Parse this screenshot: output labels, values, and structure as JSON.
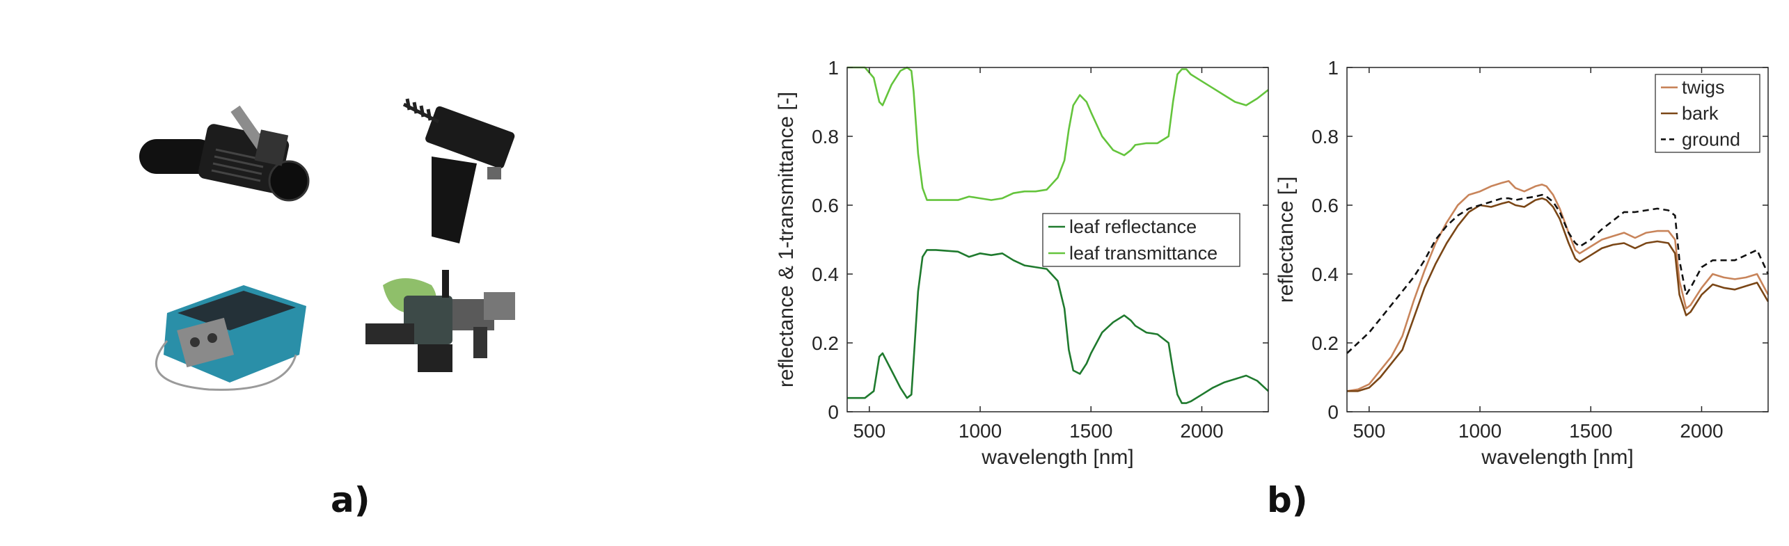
{
  "panels": {
    "a_label": "a)",
    "b_label": "b)"
  },
  "photos": [
    {
      "icon": "handheld-probe-icon"
    },
    {
      "icon": "leaf-clip-pistol-grip-icon"
    },
    {
      "icon": "portable-spectroradiometer-icon"
    },
    {
      "icon": "leaf-clip-integrating-sphere-icon"
    }
  ],
  "chart_data": [
    {
      "type": "line",
      "title": "",
      "xlabel": "wavelength [nm]",
      "ylabel": "reflectance & 1-transmittance [-]",
      "xlim": [
        400,
        2300
      ],
      "ylim": [
        0,
        1
      ],
      "xticks": [
        500,
        1000,
        1500,
        2000
      ],
      "yticks": [
        0,
        0.2,
        0.4,
        0.6,
        0.8,
        1
      ],
      "ytick_labels": [
        "0",
        "0.2",
        "0.4",
        "0.6",
        "0.8",
        "1"
      ],
      "legend_position": "center-right",
      "series": [
        {
          "name": "leaf reflectance",
          "color": "#1f7a2e",
          "dash": "solid",
          "x": [
            400,
            480,
            520,
            545,
            560,
            600,
            640,
            670,
            690,
            700,
            720,
            740,
            760,
            800,
            900,
            950,
            1000,
            1050,
            1100,
            1150,
            1200,
            1250,
            1300,
            1350,
            1380,
            1400,
            1420,
            1450,
            1480,
            1500,
            1550,
            1600,
            1650,
            1680,
            1700,
            1750,
            1800,
            1850,
            1870,
            1890,
            1910,
            1930,
            1950,
            2000,
            2050,
            2100,
            2150,
            2200,
            2250,
            2300
          ],
          "y": [
            0.04,
            0.04,
            0.06,
            0.16,
            0.17,
            0.12,
            0.07,
            0.04,
            0.05,
            0.15,
            0.35,
            0.45,
            0.47,
            0.47,
            0.465,
            0.45,
            0.46,
            0.455,
            0.46,
            0.44,
            0.425,
            0.42,
            0.415,
            0.38,
            0.3,
            0.18,
            0.12,
            0.11,
            0.14,
            0.17,
            0.23,
            0.26,
            0.28,
            0.265,
            0.25,
            0.23,
            0.225,
            0.2,
            0.12,
            0.05,
            0.025,
            0.025,
            0.03,
            0.05,
            0.07,
            0.085,
            0.095,
            0.105,
            0.09,
            0.06
          ]
        },
        {
          "name": "leaf transmittance",
          "color": "#64c43c",
          "dash": "solid",
          "x": [
            400,
            480,
            520,
            545,
            560,
            600,
            640,
            670,
            690,
            700,
            720,
            740,
            760,
            800,
            900,
            950,
            1000,
            1050,
            1100,
            1150,
            1200,
            1250,
            1300,
            1350,
            1380,
            1400,
            1420,
            1450,
            1480,
            1500,
            1550,
            1600,
            1650,
            1680,
            1700,
            1750,
            1800,
            1850,
            1870,
            1890,
            1910,
            1930,
            1950,
            2000,
            2050,
            2100,
            2150,
            2200,
            2250,
            2300
          ],
          "y": [
            1.0,
            1.0,
            0.97,
            0.9,
            0.89,
            0.95,
            0.99,
            1.0,
            0.99,
            0.93,
            0.75,
            0.65,
            0.615,
            0.615,
            0.615,
            0.625,
            0.62,
            0.615,
            0.62,
            0.635,
            0.64,
            0.64,
            0.645,
            0.68,
            0.73,
            0.82,
            0.89,
            0.92,
            0.9,
            0.87,
            0.8,
            0.76,
            0.745,
            0.76,
            0.775,
            0.78,
            0.78,
            0.8,
            0.9,
            0.98,
            0.995,
            0.995,
            0.98,
            0.96,
            0.94,
            0.92,
            0.9,
            0.89,
            0.91,
            0.935
          ]
        }
      ]
    },
    {
      "type": "line",
      "title": "",
      "xlabel": "wavelength [nm]",
      "ylabel": "reflectance [-]",
      "xlim": [
        400,
        2300
      ],
      "ylim": [
        0,
        1
      ],
      "xticks": [
        500,
        1000,
        1500,
        2000
      ],
      "yticks": [
        0,
        0.2,
        0.4,
        0.6,
        0.8,
        1
      ],
      "ytick_labels": [
        "0",
        "0.2",
        "0.4",
        "0.6",
        "0.8",
        "1"
      ],
      "legend_position": "top-right",
      "series": [
        {
          "name": "twigs",
          "color": "#c8845a",
          "dash": "solid",
          "x": [
            400,
            450,
            500,
            550,
            600,
            650,
            700,
            750,
            800,
            850,
            900,
            950,
            1000,
            1050,
            1100,
            1130,
            1160,
            1200,
            1250,
            1280,
            1300,
            1330,
            1360,
            1400,
            1430,
            1450,
            1500,
            1550,
            1600,
            1650,
            1700,
            1750,
            1800,
            1850,
            1880,
            1900,
            1930,
            1950,
            2000,
            2050,
            2100,
            2150,
            2200,
            2250,
            2300
          ],
          "y": [
            0.06,
            0.065,
            0.08,
            0.12,
            0.16,
            0.22,
            0.32,
            0.41,
            0.49,
            0.55,
            0.6,
            0.63,
            0.64,
            0.655,
            0.665,
            0.67,
            0.65,
            0.64,
            0.655,
            0.66,
            0.655,
            0.63,
            0.59,
            0.52,
            0.47,
            0.46,
            0.48,
            0.5,
            0.51,
            0.52,
            0.505,
            0.52,
            0.525,
            0.525,
            0.5,
            0.38,
            0.3,
            0.31,
            0.36,
            0.4,
            0.39,
            0.385,
            0.39,
            0.4,
            0.34
          ]
        },
        {
          "name": "bark",
          "color": "#7a4616",
          "dash": "solid",
          "x": [
            400,
            450,
            500,
            550,
            600,
            650,
            700,
            750,
            800,
            850,
            900,
            950,
            1000,
            1050,
            1100,
            1130,
            1160,
            1200,
            1250,
            1280,
            1300,
            1330,
            1360,
            1400,
            1430,
            1450,
            1500,
            1550,
            1600,
            1650,
            1700,
            1750,
            1800,
            1850,
            1880,
            1900,
            1930,
            1950,
            2000,
            2050,
            2100,
            2150,
            2200,
            2250,
            2300
          ],
          "y": [
            0.06,
            0.06,
            0.07,
            0.1,
            0.14,
            0.18,
            0.27,
            0.36,
            0.43,
            0.49,
            0.54,
            0.58,
            0.6,
            0.595,
            0.605,
            0.61,
            0.6,
            0.595,
            0.615,
            0.62,
            0.615,
            0.595,
            0.56,
            0.49,
            0.445,
            0.435,
            0.455,
            0.475,
            0.485,
            0.49,
            0.475,
            0.49,
            0.495,
            0.49,
            0.46,
            0.34,
            0.28,
            0.29,
            0.34,
            0.37,
            0.36,
            0.355,
            0.365,
            0.375,
            0.32
          ]
        },
        {
          "name": "ground",
          "color": "#111111",
          "dash": "dashed",
          "x": [
            400,
            450,
            500,
            550,
            600,
            650,
            700,
            750,
            800,
            850,
            900,
            950,
            1000,
            1050,
            1100,
            1130,
            1160,
            1200,
            1250,
            1280,
            1300,
            1330,
            1360,
            1400,
            1430,
            1450,
            1500,
            1550,
            1600,
            1650,
            1700,
            1750,
            1800,
            1850,
            1880,
            1900,
            1930,
            1950,
            2000,
            2050,
            2100,
            2150,
            2200,
            2250,
            2300
          ],
          "y": [
            0.17,
            0.2,
            0.23,
            0.27,
            0.31,
            0.35,
            0.39,
            0.44,
            0.5,
            0.54,
            0.57,
            0.59,
            0.6,
            0.61,
            0.62,
            0.62,
            0.615,
            0.62,
            0.625,
            0.63,
            0.625,
            0.61,
            0.58,
            0.52,
            0.49,
            0.48,
            0.5,
            0.53,
            0.555,
            0.58,
            0.58,
            0.585,
            0.59,
            0.585,
            0.57,
            0.44,
            0.34,
            0.36,
            0.42,
            0.44,
            0.44,
            0.44,
            0.455,
            0.47,
            0.4
          ]
        }
      ]
    }
  ]
}
